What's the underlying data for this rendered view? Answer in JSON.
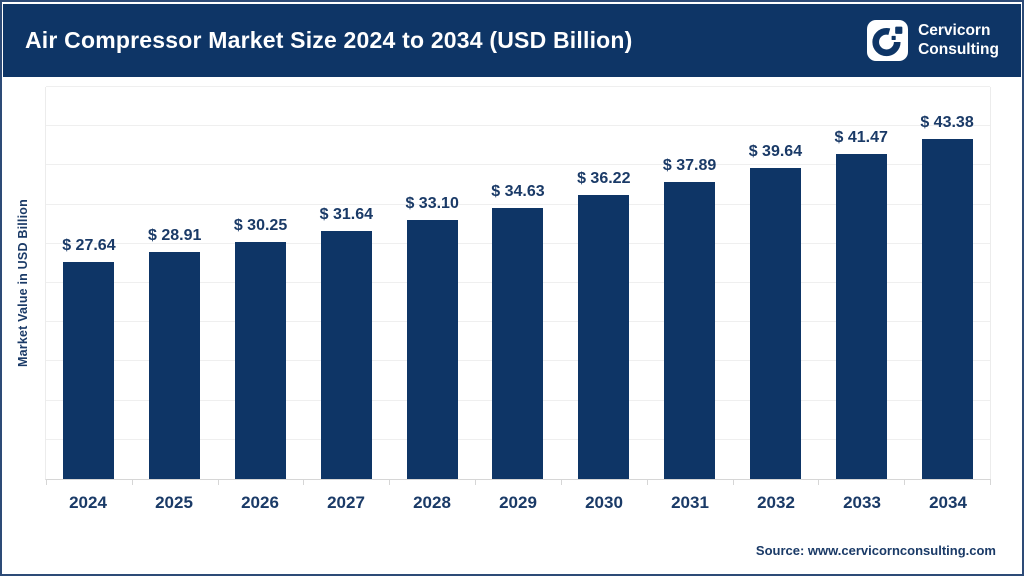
{
  "header": {
    "title": "Air Compressor Market Size 2024 to 2034 (USD Billion)",
    "logo": {
      "line1": "Cervicorn",
      "line2": "Consulting"
    }
  },
  "chart_data": {
    "type": "bar",
    "title": "Air Compressor Market Size 2024 to 2034 (USD Billion)",
    "categories": [
      "2024",
      "2025",
      "2026",
      "2027",
      "2028",
      "2029",
      "2030",
      "2031",
      "2032",
      "2033",
      "2034"
    ],
    "values": [
      27.64,
      28.91,
      30.25,
      31.64,
      33.1,
      34.63,
      36.22,
      37.89,
      39.64,
      41.47,
      43.38
    ],
    "value_prefix": "$ ",
    "xlabel": "",
    "ylabel": "Market Value in USD Billion",
    "ylim": [
      0,
      50
    ],
    "grid_step": 5,
    "grid": "horizontal-only",
    "legend": "none",
    "y_tick_labels_visible": false
  },
  "footer": {
    "source": "Source: www.cervicornconsulting.com"
  },
  "colors": {
    "header_bg": "#0e3566",
    "bar": "#0e3566",
    "title_text": "#ffffff",
    "label_text": "#1a3a67",
    "gridline": "#efefef",
    "axis_line": "#d6d6d6",
    "frame_border": "#2d4b77",
    "logo_bg": "#ffffff"
  }
}
